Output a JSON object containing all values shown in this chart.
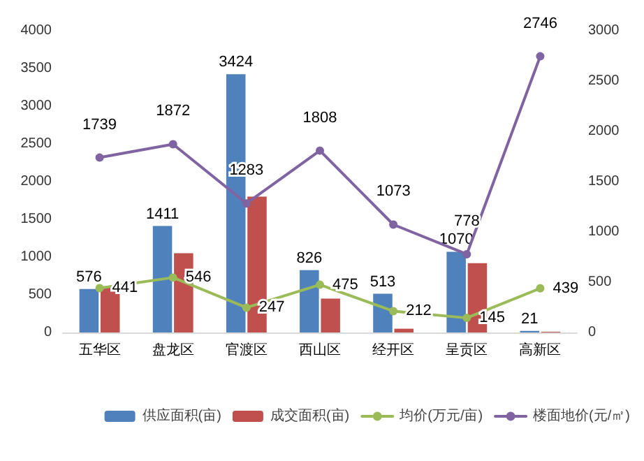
{
  "chart_data": {
    "type": "bar",
    "categories": [
      "五华区",
      "盘龙区",
      "官渡区",
      "西山区",
      "经开区",
      "呈贡区",
      "高新区"
    ],
    "series": [
      {
        "name": "供应面积(亩)",
        "color": "#4f81bd",
        "values": [
          576,
          1411,
          3424,
          826,
          513,
          1070,
          21
        ],
        "value_labels": [
          "576",
          "1411",
          "3424",
          "826",
          "513",
          "1070",
          "21"
        ]
      },
      {
        "name": "成交面积(亩)",
        "color": "#c0504d",
        "values": [
          600,
          1050,
          1800,
          450,
          50,
          920,
          10
        ]
      },
      {
        "name": "均价(万元/亩)",
        "type": "line",
        "axis": "y2",
        "color": "#9bbb59",
        "values": [
          441,
          546,
          247,
          475,
          212,
          145,
          439
        ],
        "value_labels": [
          "441",
          "546",
          "247",
          "475",
          "212",
          "145",
          "439"
        ]
      },
      {
        "name": "楼面地价(元/㎡)",
        "type": "line",
        "axis": "y2",
        "color": "#8064a2",
        "values": [
          1739,
          1872,
          1283,
          1808,
          1073,
          778,
          2746
        ],
        "value_labels": [
          "1739",
          "1872",
          "1283",
          "1808",
          "1073",
          "778",
          "2746"
        ]
      }
    ],
    "ylim": [
      0,
      4000
    ],
    "yticks": [
      0,
      500,
      1000,
      1500,
      2000,
      2500,
      3000,
      3500,
      4000
    ],
    "y2lim": [
      0,
      3000
    ],
    "y2ticks": [
      0,
      500,
      1000,
      1500,
      2000,
      2500,
      3000
    ],
    "grid": false,
    "legend": "bottom right",
    "marker": "circle",
    "line_style": "solid"
  }
}
